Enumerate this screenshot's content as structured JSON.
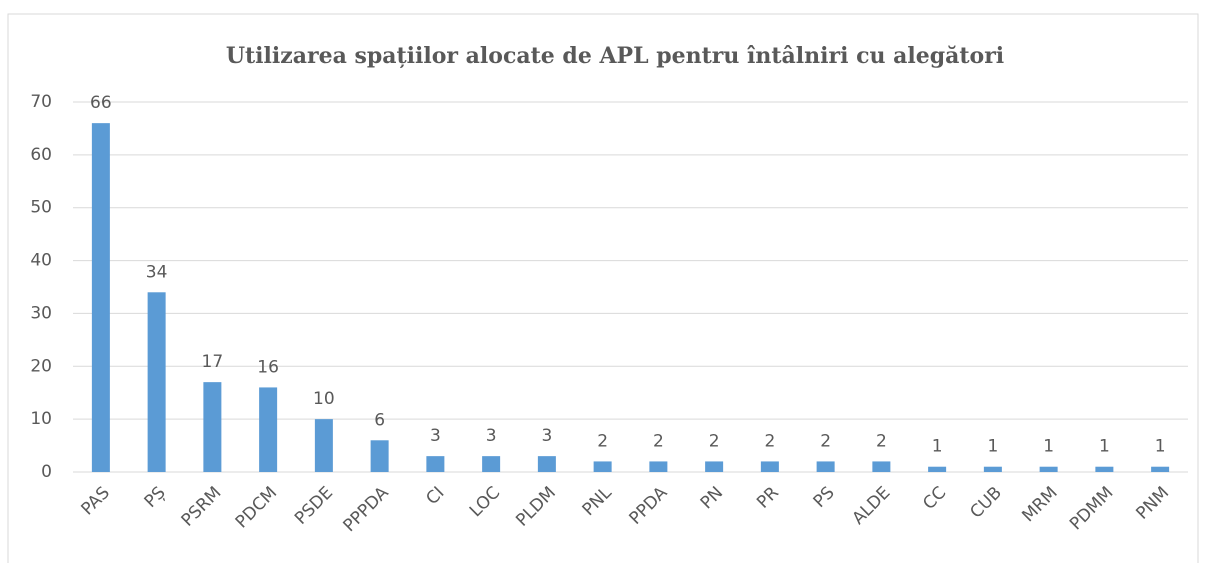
{
  "chart_data": {
    "type": "bar",
    "title": "Utilizarea spațiilor alocate de APL pentru întâlniri cu alegători",
    "categories": [
      "PAS",
      "PȘ",
      "PSRM",
      "PDCM",
      "PSDE",
      "PPPDA",
      "CI",
      "LOC",
      "PLDM",
      "PNL",
      "PPDA",
      "PN",
      "PR",
      "PS",
      "ALDE",
      "CC",
      "CUB",
      "MRM",
      "PDMM",
      "PNM"
    ],
    "values": [
      66,
      34,
      17,
      16,
      10,
      6,
      3,
      3,
      3,
      2,
      2,
      2,
      2,
      2,
      2,
      1,
      1,
      1,
      1,
      1
    ],
    "color": "#5b9bd5",
    "ylim": [
      0,
      70
    ],
    "yticks": [
      0,
      10,
      20,
      30,
      40,
      50,
      60,
      70
    ],
    "grid": true
  }
}
